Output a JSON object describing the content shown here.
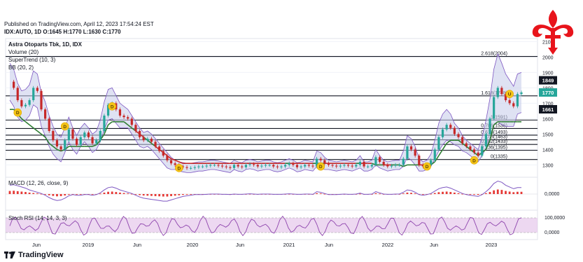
{
  "header": {
    "published": "Published on TradingView.com, April 12, 2023 17:54:24 EST",
    "ohlc": "IDX:AUTO, 1D O:1645 H:1770 L:1630 C:1770"
  },
  "footer": {
    "brand": "TradingView"
  },
  "colors": {
    "price_up": "#26a69a",
    "price_down": "#c62828",
    "supertrend_up": "#2e7d32",
    "supertrend_down": "#c62828",
    "bb_fill": "#c5cae9",
    "bb_line": "#7e57c2",
    "macd_line": "#7e57c2",
    "macd_hist": "#e53935",
    "stoch_line": "#8e44ad",
    "stoch_band": "#e1bee7",
    "fib_line": "#131722",
    "last_price_bg": "#26a69a",
    "logo_red": "#e8141b"
  },
  "chart_data": {
    "type": "line",
    "title": "Astra Otoparts Tbk, 1D, IDX",
    "indicators": [
      "Volume (20)",
      "SuperTrend (10, 3)",
      "BB (20, 2)"
    ],
    "x_ticks": [
      "Jun",
      "2019",
      "Jun",
      "2020",
      "Jun",
      "2021",
      "Jun",
      "2022",
      "Jun",
      "2023"
    ],
    "price_axis": {
      "ticks": [
        1300,
        1400,
        1500,
        1600,
        1700,
        1800,
        1900,
        2000,
        2100
      ],
      "ylim": [
        1220,
        2120
      ],
      "price_labels": [
        {
          "value": 1849,
          "label": "1849",
          "style": "dark"
        },
        {
          "value": 1770,
          "label": "1770",
          "style": "last"
        },
        {
          "value": 1661,
          "label": "1661",
          "style": "dark"
        }
      ]
    },
    "fib_levels": [
      {
        "ratio": "2.618",
        "price": 2004,
        "label": "2.618(2004)"
      },
      {
        "ratio": "1.618",
        "price": 1748,
        "label": "1.618(1748)"
      },
      {
        "ratio": "1",
        "price": 1591,
        "label": "1(1591)"
      },
      {
        "ratio": "0.786",
        "price": 1536,
        "label": "0.786(1536)"
      },
      {
        "ratio": "0.618",
        "price": 1493,
        "label": "0.618(1493)"
      },
      {
        "ratio": "0.5",
        "price": 1463,
        "label": "0.5(1463)"
      },
      {
        "ratio": "0.382",
        "price": 1433,
        "label": "0.382(1433)"
      },
      {
        "ratio": "0.236",
        "price": 1395,
        "label": "0.236(1395)"
      },
      {
        "ratio": "0",
        "price": 1335,
        "label": "0(1335)"
      }
    ],
    "price_series": {
      "name": "",
      "values": [
        1840,
        1800,
        1720,
        1680,
        1690,
        1720,
        1800,
        1780,
        1660,
        1600,
        1520,
        1460,
        1420,
        1400,
        1460,
        1530,
        1470,
        1430,
        1480,
        1510,
        1480,
        1440,
        1460,
        1520,
        1620,
        1690,
        1700,
        1660,
        1620,
        1610,
        1600,
        1560,
        1520,
        1480,
        1460,
        1470,
        1450,
        1420,
        1390,
        1360,
        1330,
        1310,
        1300,
        1290,
        1285,
        1280,
        1280,
        1285,
        1290,
        1290,
        1295,
        1300,
        1300,
        1295,
        1290,
        1285,
        1280,
        1300,
        1290,
        1285,
        1300,
        1305,
        1300,
        1290,
        1295,
        1300,
        1300,
        1290,
        1285,
        1290,
        1300,
        1310,
        1300,
        1285,
        1290,
        1300,
        1295,
        1290,
        1340,
        1330,
        1310,
        1300,
        1295,
        1290,
        1295,
        1300,
        1295,
        1290,
        1300,
        1320,
        1290,
        1290,
        1300,
        1350,
        1320,
        1300,
        1290,
        1295,
        1300,
        1300,
        1340,
        1420,
        1400,
        1360,
        1300,
        1290,
        1300,
        1330,
        1400,
        1480,
        1530,
        1560,
        1540,
        1500,
        1480,
        1440,
        1420,
        1400,
        1380,
        1360,
        1420,
        1500,
        1600,
        1740,
        1800,
        1760,
        1720,
        1700,
        1680,
        1760,
        1770
      ]
    },
    "supertrend_values": [
      1660,
      1660,
      1630,
      1600,
      1580,
      1560,
      1540,
      1520,
      1500,
      1480,
      1440,
      1420,
      1400,
      1390,
      1400,
      1420,
      1420,
      1420,
      1420,
      1420,
      1420,
      1420,
      1430,
      1460,
      1500,
      1560,
      1580,
      1580,
      1580,
      1580,
      1560,
      1540,
      1520,
      1500,
      1480,
      1460,
      1440,
      1420,
      1400,
      1380,
      1360,
      1340,
      1330,
      1320,
      1310,
      1310,
      1310,
      1310,
      1310,
      1310,
      1310,
      1310,
      1310,
      1310,
      1310,
      1310,
      1310,
      1310,
      1310,
      1310,
      1310,
      1310,
      1310,
      1310,
      1310,
      1310,
      1310,
      1310,
      1310,
      1310,
      1310,
      1310,
      1310,
      1310,
      1310,
      1310,
      1310,
      1310,
      1310,
      1310,
      1310,
      1310,
      1310,
      1310,
      1310,
      1310,
      1310,
      1310,
      1310,
      1310,
      1310,
      1310,
      1310,
      1300,
      1300,
      1300,
      1300,
      1300,
      1300,
      1300,
      1290,
      1300,
      1300,
      1300,
      1300,
      1300,
      1300,
      1300,
      1320,
      1360,
      1400,
      1440,
      1460,
      1460,
      1460,
      1440,
      1420,
      1400,
      1380,
      1360,
      1380,
      1400,
      1460,
      1560,
      1580,
      1580,
      1580,
      1580,
      1580,
      1580,
      1580
    ],
    "bb_width": [
      120,
      120,
      110,
      100,
      100,
      100,
      110,
      110,
      110,
      110,
      100,
      90,
      80,
      80,
      80,
      80,
      70,
      60,
      60,
      60,
      60,
      60,
      60,
      70,
      90,
      100,
      100,
      90,
      80,
      70,
      60,
      60,
      60,
      60,
      50,
      50,
      50,
      50,
      50,
      50,
      50,
      40,
      30,
      30,
      30,
      30,
      30,
      30,
      30,
      30,
      30,
      30,
      30,
      30,
      30,
      30,
      30,
      30,
      30,
      30,
      30,
      30,
      30,
      30,
      30,
      30,
      30,
      30,
      30,
      30,
      30,
      30,
      30,
      30,
      30,
      30,
      30,
      30,
      50,
      50,
      40,
      30,
      30,
      30,
      30,
      30,
      30,
      30,
      30,
      40,
      30,
      30,
      30,
      50,
      40,
      30,
      30,
      30,
      30,
      30,
      50,
      70,
      70,
      60,
      40,
      30,
      30,
      40,
      60,
      90,
      100,
      100,
      90,
      70,
      60,
      50,
      40,
      40,
      40,
      40,
      60,
      90,
      130,
      180,
      220,
      200,
      170,
      150,
      130,
      130,
      130
    ],
    "markers": [
      {
        "label": "D",
        "index": 2,
        "price": 1640
      },
      {
        "label": "D",
        "index": 14,
        "price": 1550
      },
      {
        "label": "D",
        "index": 26,
        "price": 1680
      },
      {
        "label": "D",
        "index": 43,
        "price": 1280
      },
      {
        "label": "D",
        "index": 79,
        "price": 1290
      },
      {
        "label": "D",
        "index": 106,
        "price": 1290
      },
      {
        "label": "D",
        "index": 118,
        "price": 1330
      },
      {
        "label": "U",
        "index": 127,
        "price": 1760
      }
    ],
    "macd": {
      "label": "MACD (12, 26, close, 9)",
      "axis_label": "0,0000",
      "values": [
        30,
        32,
        28,
        24,
        20,
        14,
        10,
        6,
        2,
        -4,
        -12,
        -18,
        -22,
        -20,
        -14,
        -6,
        -2,
        -4,
        -4,
        -2,
        -2,
        -4,
        -2,
        4,
        14,
        22,
        24,
        20,
        14,
        10,
        6,
        2,
        -4,
        -10,
        -14,
        -16,
        -18,
        -20,
        -22,
        -24,
        -24,
        -20,
        -16,
        -12,
        -8,
        -6,
        -4,
        -2,
        -2,
        -2,
        -1,
        0,
        0,
        0,
        -1,
        -1,
        -2,
        0,
        -1,
        -1,
        0,
        1,
        0,
        -1,
        0,
        0,
        0,
        -1,
        -1,
        -1,
        0,
        1,
        0,
        -1,
        -1,
        0,
        0,
        -1,
        8,
        6,
        2,
        -2,
        -2,
        -2,
        -1,
        0,
        -1,
        -1,
        0,
        3,
        -1,
        -1,
        0,
        8,
        4,
        0,
        -1,
        -1,
        0,
        0,
        6,
        14,
        12,
        6,
        -2,
        -4,
        -2,
        2,
        10,
        18,
        22,
        24,
        20,
        14,
        8,
        2,
        -2,
        -4,
        -6,
        -8,
        -2,
        8,
        20,
        36,
        44,
        40,
        30,
        24,
        18,
        22,
        22
      ]
    },
    "stoch": {
      "label": "Stoch RSI (14, 14, 3, 3)",
      "axis_ticks": [
        "100,0000",
        "0,0000"
      ]
    }
  }
}
